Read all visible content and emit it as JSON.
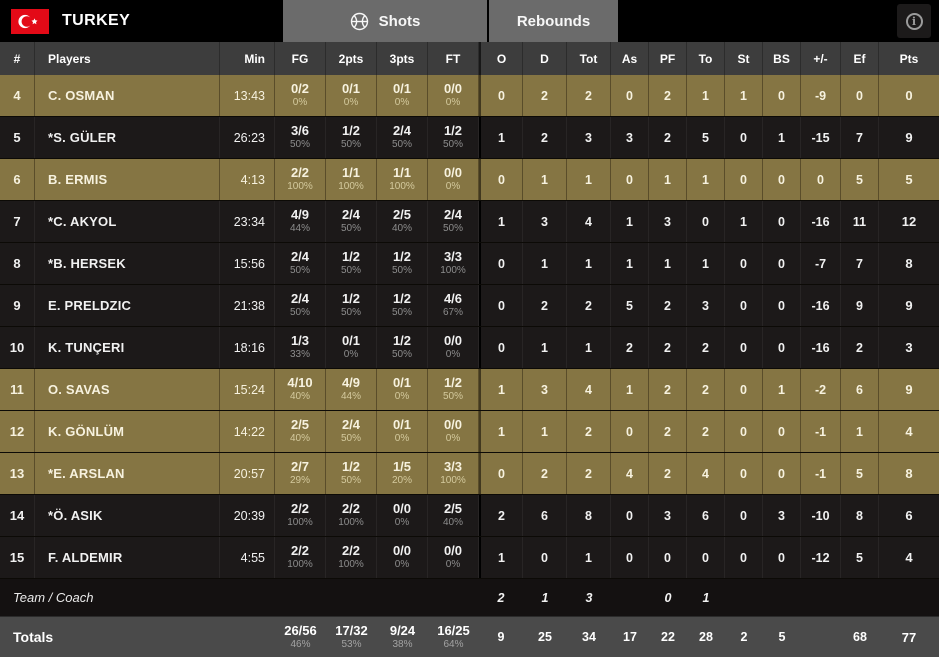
{
  "header": {
    "team": "TURKEY",
    "section_tabs": [
      {
        "label": "Shots"
      },
      {
        "label": "Rebounds"
      }
    ],
    "info_label": "i"
  },
  "columns": [
    "#",
    "Players",
    "Min",
    "FG",
    "2pts",
    "3pts",
    "FT",
    "O",
    "D",
    "Tot",
    "As",
    "PF",
    "To",
    "St",
    "BS",
    "+/-",
    "Ef",
    "Pts"
  ],
  "players": [
    {
      "num": "4",
      "name": "C. OSMAN",
      "min": "13:43",
      "highlight": true,
      "shots": [
        [
          "0/2",
          "0%"
        ],
        [
          "0/1",
          "0%"
        ],
        [
          "0/1",
          "0%"
        ],
        [
          "0/0",
          "0%"
        ]
      ],
      "stats": [
        "0",
        "2",
        "2",
        "0",
        "2",
        "1",
        "1",
        "0",
        "-9",
        "0",
        "0"
      ]
    },
    {
      "num": "5",
      "name": "*S. GÜLER",
      "min": "26:23",
      "highlight": false,
      "shots": [
        [
          "3/6",
          "50%"
        ],
        [
          "1/2",
          "50%"
        ],
        [
          "2/4",
          "50%"
        ],
        [
          "1/2",
          "50%"
        ]
      ],
      "stats": [
        "1",
        "2",
        "3",
        "3",
        "2",
        "5",
        "0",
        "1",
        "-15",
        "7",
        "9"
      ]
    },
    {
      "num": "6",
      "name": "B. ERMIS",
      "min": "4:13",
      "highlight": true,
      "shots": [
        [
          "2/2",
          "100%"
        ],
        [
          "1/1",
          "100%"
        ],
        [
          "1/1",
          "100%"
        ],
        [
          "0/0",
          "0%"
        ]
      ],
      "stats": [
        "0",
        "1",
        "1",
        "0",
        "1",
        "1",
        "0",
        "0",
        "0",
        "5",
        "5"
      ]
    },
    {
      "num": "7",
      "name": "*C. AKYOL",
      "min": "23:34",
      "highlight": false,
      "shots": [
        [
          "4/9",
          "44%"
        ],
        [
          "2/4",
          "50%"
        ],
        [
          "2/5",
          "40%"
        ],
        [
          "2/4",
          "50%"
        ]
      ],
      "stats": [
        "1",
        "3",
        "4",
        "1",
        "3",
        "0",
        "1",
        "0",
        "-16",
        "11",
        "12"
      ]
    },
    {
      "num": "8",
      "name": "*B. HERSEK",
      "min": "15:56",
      "highlight": false,
      "shots": [
        [
          "2/4",
          "50%"
        ],
        [
          "1/2",
          "50%"
        ],
        [
          "1/2",
          "50%"
        ],
        [
          "3/3",
          "100%"
        ]
      ],
      "stats": [
        "0",
        "1",
        "1",
        "1",
        "1",
        "1",
        "0",
        "0",
        "-7",
        "7",
        "8"
      ]
    },
    {
      "num": "9",
      "name": "E. PRELDZIC",
      "min": "21:38",
      "highlight": false,
      "shots": [
        [
          "2/4",
          "50%"
        ],
        [
          "1/2",
          "50%"
        ],
        [
          "1/2",
          "50%"
        ],
        [
          "4/6",
          "67%"
        ]
      ],
      "stats": [
        "0",
        "2",
        "2",
        "5",
        "2",
        "3",
        "0",
        "0",
        "-16",
        "9",
        "9"
      ]
    },
    {
      "num": "10",
      "name": "K. TUNÇERI",
      "min": "18:16",
      "highlight": false,
      "shots": [
        [
          "1/3",
          "33%"
        ],
        [
          "0/1",
          "0%"
        ],
        [
          "1/2",
          "50%"
        ],
        [
          "0/0",
          "0%"
        ]
      ],
      "stats": [
        "0",
        "1",
        "1",
        "2",
        "2",
        "2",
        "0",
        "0",
        "-16",
        "2",
        "3"
      ]
    },
    {
      "num": "11",
      "name": "O. SAVAS",
      "min": "15:24",
      "highlight": true,
      "shots": [
        [
          "4/10",
          "40%"
        ],
        [
          "4/9",
          "44%"
        ],
        [
          "0/1",
          "0%"
        ],
        [
          "1/2",
          "50%"
        ]
      ],
      "stats": [
        "1",
        "3",
        "4",
        "1",
        "2",
        "2",
        "0",
        "1",
        "-2",
        "6",
        "9"
      ]
    },
    {
      "num": "12",
      "name": "K. GÖNLÜM",
      "min": "14:22",
      "highlight": true,
      "shots": [
        [
          "2/5",
          "40%"
        ],
        [
          "2/4",
          "50%"
        ],
        [
          "0/1",
          "0%"
        ],
        [
          "0/0",
          "0%"
        ]
      ],
      "stats": [
        "1",
        "1",
        "2",
        "0",
        "2",
        "2",
        "0",
        "0",
        "-1",
        "1",
        "4"
      ]
    },
    {
      "num": "13",
      "name": "*E. ARSLAN",
      "min": "20:57",
      "highlight": true,
      "shots": [
        [
          "2/7",
          "29%"
        ],
        [
          "1/2",
          "50%"
        ],
        [
          "1/5",
          "20%"
        ],
        [
          "3/3",
          "100%"
        ]
      ],
      "stats": [
        "0",
        "2",
        "2",
        "4",
        "2",
        "4",
        "0",
        "0",
        "-1",
        "5",
        "8"
      ]
    },
    {
      "num": "14",
      "name": "*Ö. ASIK",
      "min": "20:39",
      "highlight": false,
      "shots": [
        [
          "2/2",
          "100%"
        ],
        [
          "2/2",
          "100%"
        ],
        [
          "0/0",
          "0%"
        ],
        [
          "2/5",
          "40%"
        ]
      ],
      "stats": [
        "2",
        "6",
        "8",
        "0",
        "3",
        "6",
        "0",
        "3",
        "-10",
        "8",
        "6"
      ]
    },
    {
      "num": "15",
      "name": "F. ALDEMIR",
      "min": "4:55",
      "highlight": false,
      "shots": [
        [
          "2/2",
          "100%"
        ],
        [
          "2/2",
          "100%"
        ],
        [
          "0/0",
          "0%"
        ],
        [
          "0/0",
          "0%"
        ]
      ],
      "stats": [
        "1",
        "0",
        "1",
        "0",
        "0",
        "0",
        "0",
        "0",
        "-12",
        "5",
        "4"
      ]
    }
  ],
  "team_row": {
    "label": "Team / Coach",
    "stats": [
      "2",
      "1",
      "3",
      "",
      "0",
      "1",
      "",
      "",
      "",
      "",
      ""
    ]
  },
  "totals": {
    "label": "Totals",
    "shots": [
      [
        "26/56",
        "46%"
      ],
      [
        "17/32",
        "53%"
      ],
      [
        "9/24",
        "38%"
      ],
      [
        "16/25",
        "64%"
      ]
    ],
    "stats": [
      "9",
      "25",
      "34",
      "17",
      "22",
      "28",
      "2",
      "5",
      "",
      "68",
      "77"
    ]
  },
  "colors": {
    "highlight_row": "#857543",
    "dark_row": "#1c1919",
    "header_bar": "#000000",
    "column_header": "#3d3d3d",
    "tab_background": "#6b6b6b",
    "totals_row": "#4a4a4a",
    "flag_red": "#e30a17"
  }
}
